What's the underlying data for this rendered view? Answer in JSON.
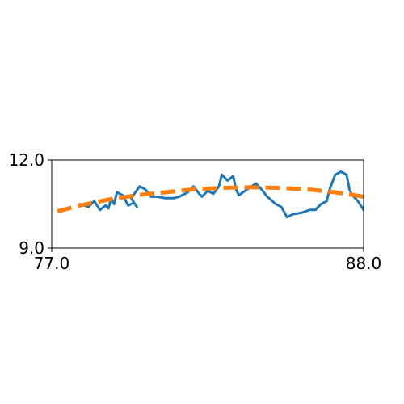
{
  "chart_data": {
    "type": "line",
    "title": "",
    "xlabel": "",
    "ylabel": "",
    "xlim": [
      77.0,
      88.0
    ],
    "ylim": [
      9.0,
      12.0
    ],
    "x_ticks": [
      "77.0",
      "88.0"
    ],
    "y_ticks": [
      "9.0",
      "12.0"
    ],
    "grid": false,
    "legend": "none",
    "series": [
      {
        "style": "solid",
        "color": "#1f77b4",
        "points": [
          [
            78.0,
            10.5
          ],
          [
            78.3,
            10.4
          ],
          [
            78.5,
            10.6
          ],
          [
            78.7,
            10.3
          ],
          [
            78.9,
            10.45
          ],
          [
            79.0,
            10.35
          ],
          [
            79.1,
            10.7
          ],
          [
            79.2,
            10.5
          ],
          [
            79.3,
            10.9
          ],
          [
            79.5,
            10.8
          ],
          [
            79.7,
            10.45
          ],
          [
            79.9,
            10.55
          ],
          [
            80.0,
            10.4
          ],
          [
            79.8,
            10.7
          ],
          [
            80.1,
            11.1
          ],
          [
            80.3,
            11.0
          ],
          [
            80.5,
            10.75
          ],
          [
            80.7,
            10.75
          ],
          [
            81.0,
            10.7
          ],
          [
            81.3,
            10.7
          ],
          [
            81.5,
            10.75
          ],
          [
            81.8,
            10.9
          ],
          [
            82.0,
            11.1
          ],
          [
            82.2,
            10.85
          ],
          [
            82.3,
            10.75
          ],
          [
            82.5,
            10.95
          ],
          [
            82.7,
            10.85
          ],
          [
            82.9,
            11.1
          ],
          [
            83.0,
            11.5
          ],
          [
            83.2,
            11.3
          ],
          [
            83.4,
            11.45
          ],
          [
            83.5,
            11.0
          ],
          [
            83.6,
            10.8
          ],
          [
            83.9,
            11.0
          ],
          [
            84.2,
            11.2
          ],
          [
            84.4,
            11.0
          ],
          [
            84.6,
            10.75
          ],
          [
            84.9,
            10.5
          ],
          [
            85.1,
            10.4
          ],
          [
            85.3,
            10.05
          ],
          [
            85.5,
            10.15
          ],
          [
            85.8,
            10.2
          ],
          [
            86.1,
            10.3
          ],
          [
            86.3,
            10.3
          ],
          [
            86.5,
            10.5
          ],
          [
            86.7,
            10.6
          ],
          [
            86.8,
            11.0
          ],
          [
            87.0,
            11.5
          ],
          [
            87.2,
            11.6
          ],
          [
            87.4,
            11.5
          ],
          [
            87.5,
            11.0
          ],
          [
            87.6,
            10.8
          ],
          [
            87.7,
            10.7
          ],
          [
            87.8,
            10.6
          ],
          [
            88.0,
            10.3
          ],
          [
            88.2,
            10.25
          ]
        ]
      },
      {
        "style": "dashed",
        "color": "#ff7f0e",
        "points": [
          [
            77.2,
            10.25
          ],
          [
            78.0,
            10.45
          ],
          [
            79.0,
            10.65
          ],
          [
            80.0,
            10.8
          ],
          [
            81.0,
            10.9
          ],
          [
            82.0,
            11.0
          ],
          [
            83.0,
            11.05
          ],
          [
            84.0,
            11.07
          ],
          [
            85.0,
            11.05
          ],
          [
            86.0,
            11.0
          ],
          [
            87.0,
            10.9
          ],
          [
            88.0,
            10.75
          ],
          [
            88.9,
            10.6
          ]
        ]
      }
    ]
  }
}
